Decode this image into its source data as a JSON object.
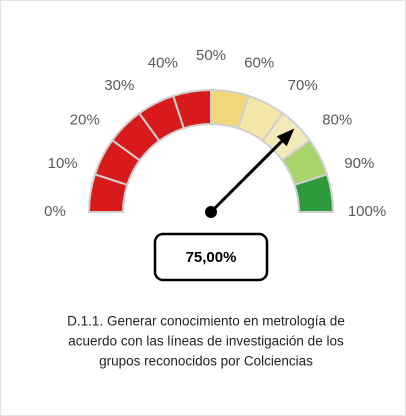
{
  "chart_data": {
    "type": "gauge",
    "value": 75,
    "value_label": "75,00%",
    "ticks": [
      {
        "value": 0,
        "label": "0%"
      },
      {
        "value": 10,
        "label": "10%"
      },
      {
        "value": 20,
        "label": "20%"
      },
      {
        "value": 30,
        "label": "30%"
      },
      {
        "value": 40,
        "label": "40%"
      },
      {
        "value": 50,
        "label": "50%"
      },
      {
        "value": 60,
        "label": "60%"
      },
      {
        "value": 70,
        "label": "70%"
      },
      {
        "value": 80,
        "label": "80%"
      },
      {
        "value": 90,
        "label": "90%"
      },
      {
        "value": 100,
        "label": "100%"
      }
    ],
    "lim": [
      0,
      100
    ],
    "band_colors": [
      "#d91a1a",
      "#d91a1a",
      "#d91a1a",
      "#d91a1a",
      "#d91a1a",
      "#efd77a",
      "#f5e7a6",
      "#f4e9b8",
      "#a9d46c",
      "#2e9a3c"
    ],
    "needle_color": "#000000",
    "caption": [
      "D.1.1. Generar conocimiento en metrología de",
      "acuerdo con las líneas de investigación  de los",
      "grupos reconocidos por Colciencias"
    ]
  }
}
